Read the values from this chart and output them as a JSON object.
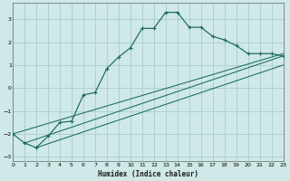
{
  "xlabel": "Humidex (Indice chaleur)",
  "xlim": [
    0,
    23
  ],
  "ylim": [
    -3.2,
    3.7
  ],
  "yticks": [
    -3,
    -2,
    -1,
    0,
    1,
    2,
    3
  ],
  "xticks": [
    0,
    1,
    2,
    3,
    4,
    5,
    6,
    7,
    8,
    9,
    10,
    11,
    12,
    13,
    14,
    15,
    16,
    17,
    18,
    19,
    20,
    21,
    22,
    23
  ],
  "background_color": "#cfe8e8",
  "grid_color": "#aacccc",
  "line_color": "#1a6b5a",
  "curve1_x": [
    0,
    1,
    2,
    3,
    4,
    5,
    6,
    7,
    8,
    9,
    10,
    11,
    12,
    13,
    14,
    15,
    16,
    17,
    18,
    19,
    20,
    21,
    22,
    23
  ],
  "curve1_y": [
    -2.0,
    -2.4,
    -2.6,
    -2.1,
    -1.5,
    -1.45,
    -0.3,
    -0.2,
    0.85,
    1.35,
    1.75,
    2.6,
    2.6,
    3.3,
    3.3,
    2.65,
    2.65,
    2.25,
    2.1,
    1.85,
    1.5,
    1.5,
    1.5,
    1.4
  ],
  "line1_x": [
    0,
    23
  ],
  "line1_y": [
    -2.0,
    1.5
  ],
  "line2_x": [
    1,
    23
  ],
  "line2_y": [
    -2.4,
    1.4
  ],
  "line3_x": [
    2,
    23
  ],
  "line3_y": [
    -2.6,
    1.0
  ]
}
